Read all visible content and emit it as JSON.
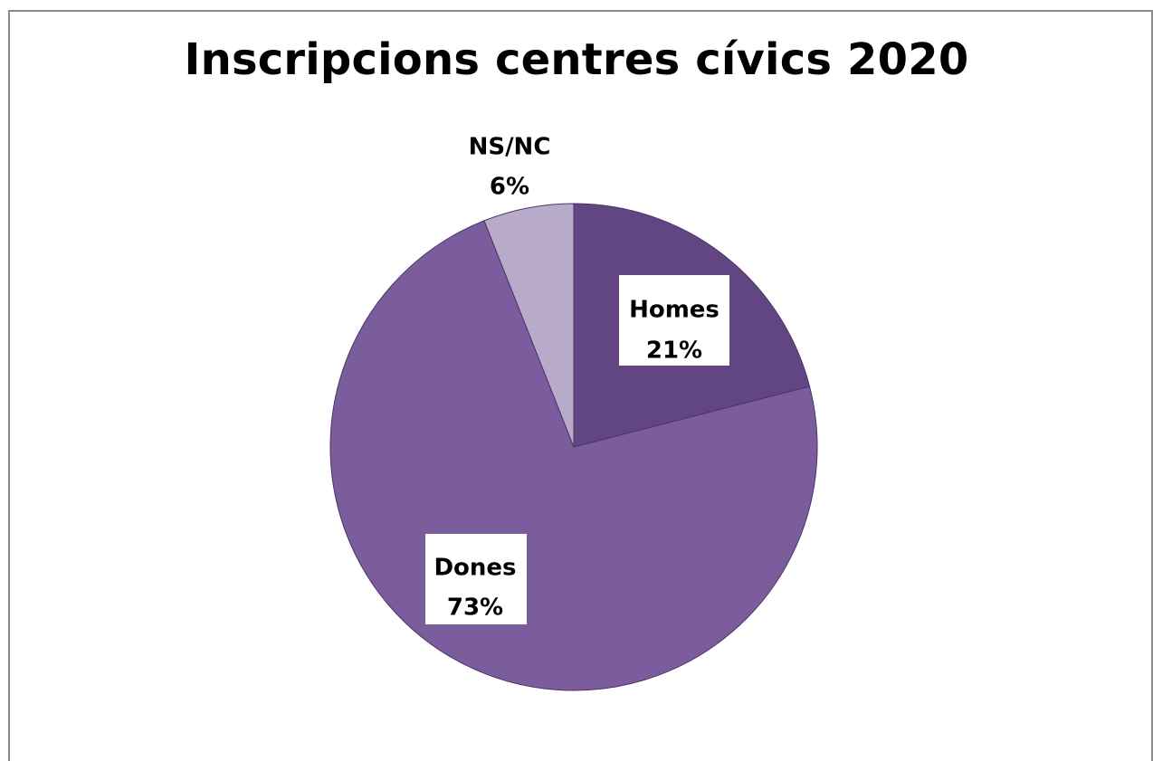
{
  "chart_data": {
    "type": "pie",
    "title": "Inscripcions centres cívics 2020",
    "slices": [
      {
        "label": "Homes",
        "value": 21,
        "percent_label": "21%",
        "color": "#614683",
        "label_boxed": true
      },
      {
        "label": "Dones",
        "value": 73,
        "percent_label": "73%",
        "color": "#7b5d9e",
        "label_boxed": true
      },
      {
        "label": "NS/NC",
        "value": 6,
        "percent_label": "6%",
        "color": "#b8abca",
        "label_boxed": false
      }
    ],
    "legend": "none"
  }
}
